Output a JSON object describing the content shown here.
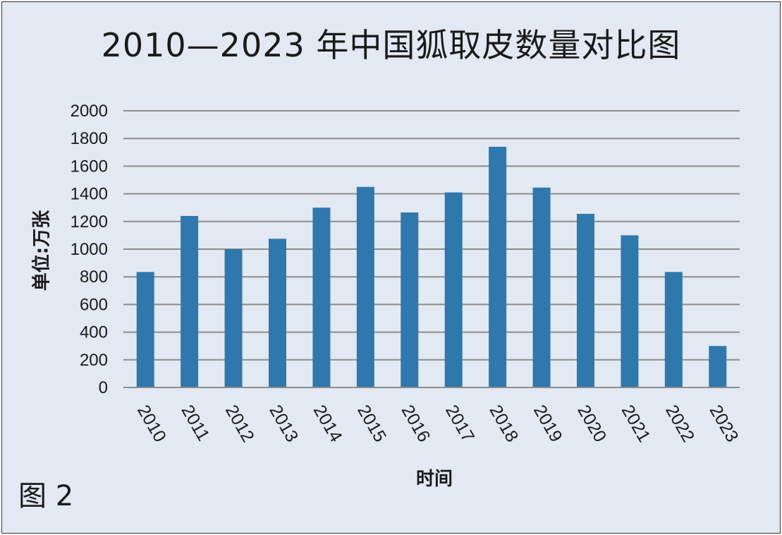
{
  "figure_label": "图 2",
  "chart_data": {
    "type": "bar",
    "title": "2010—2023 年中国狐取皮数量对比图",
    "xlabel": "时间",
    "ylabel": "单位:万张",
    "ylim": [
      0,
      2000
    ],
    "yticks": [
      0,
      200,
      400,
      600,
      800,
      1000,
      1200,
      1400,
      1600,
      1800,
      2000
    ],
    "grid": true,
    "bar_color": "#2e78ad",
    "grid_color": "#8c8c8c",
    "categories": [
      "2010",
      "2011",
      "2012",
      "2013",
      "2014",
      "2015",
      "2016",
      "2017",
      "2018",
      "2019",
      "2020",
      "2021",
      "2022",
      "2023"
    ],
    "values": [
      835,
      1240,
      1000,
      1075,
      1300,
      1450,
      1265,
      1410,
      1740,
      1445,
      1255,
      1100,
      835,
      300
    ]
  }
}
